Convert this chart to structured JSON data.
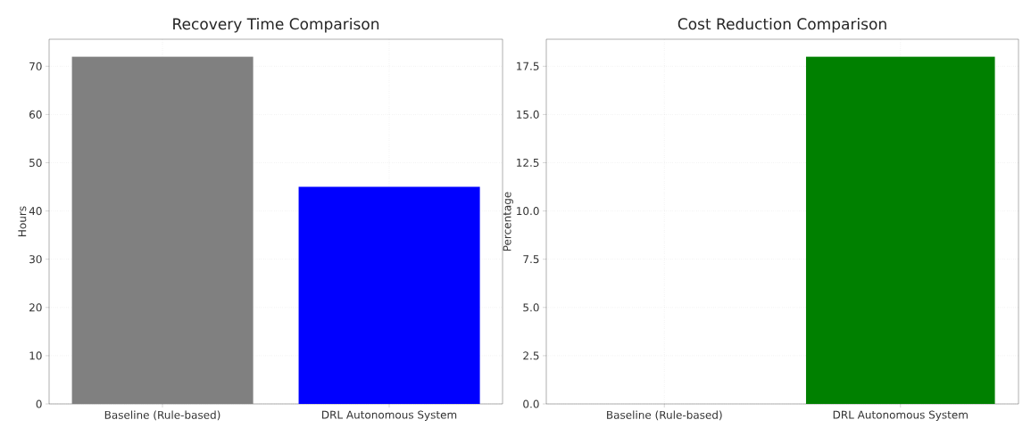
{
  "chart_data": [
    {
      "type": "bar",
      "title": "Recovery Time Comparison",
      "ylabel": "Hours",
      "categories": [
        "Baseline (Rule-based)",
        "DRL Autonomous System"
      ],
      "values": [
        72,
        45
      ],
      "colors": [
        "#808080",
        "#0000ff"
      ],
      "ylim": [
        0,
        75.6
      ],
      "yticks": [
        0,
        10,
        20,
        30,
        40,
        50,
        60,
        70
      ],
      "grid": true
    },
    {
      "type": "bar",
      "title": "Cost Reduction Comparison",
      "ylabel": "Percentage",
      "categories": [
        "Baseline (Rule-based)",
        "DRL Autonomous System"
      ],
      "values": [
        0,
        18
      ],
      "colors": [
        "#808080",
        "#008000"
      ],
      "ylim": [
        0,
        18.9
      ],
      "yticks": [
        {
          "value": 0,
          "label": "0.0"
        },
        {
          "value": 2.5,
          "label": "2.5"
        },
        {
          "value": 5,
          "label": "5.0"
        },
        {
          "value": 7.5,
          "label": "7.5"
        },
        {
          "value": 10,
          "label": "10.0"
        },
        {
          "value": 12.5,
          "label": "12.5"
        },
        {
          "value": 15,
          "label": "15.0"
        },
        {
          "value": 17.5,
          "label": "17.5"
        }
      ],
      "grid": true
    }
  ]
}
